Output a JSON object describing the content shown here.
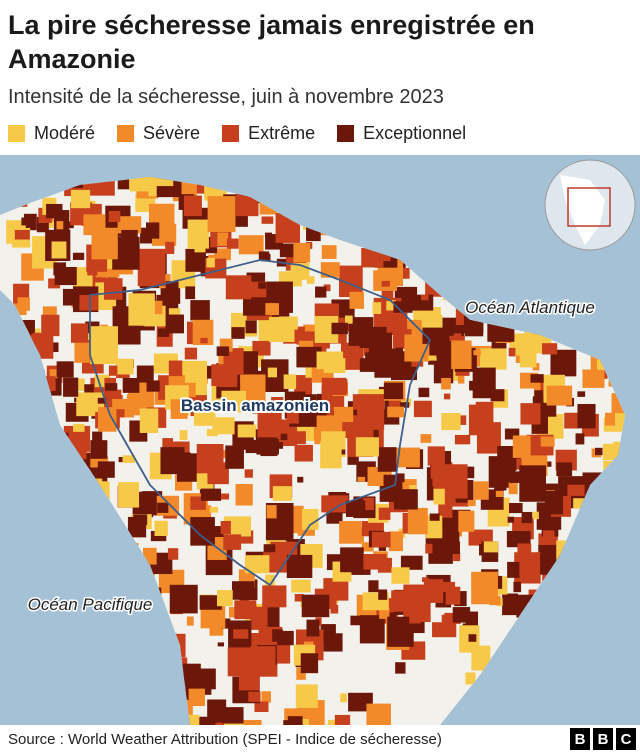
{
  "header": {
    "title": "La pire sécheresse jamais enregistrée en Amazonie",
    "subtitle": "Intensité de la sécheresse, juin à novembre 2023"
  },
  "legend": {
    "items": [
      {
        "label": "Modéré",
        "color": "#f7c948"
      },
      {
        "label": "Sévère",
        "color": "#f28a2a"
      },
      {
        "label": "Extrême",
        "color": "#c7401d"
      },
      {
        "label": "Exceptionnel",
        "color": "#6b1709"
      }
    ]
  },
  "map": {
    "labels": [
      "Océan Atlantique",
      "Bassin amazonien",
      "Océan Pacifique"
    ]
  },
  "footer": {
    "source": "Source : World Weather Attribution (SPEI - Indice de sécheresse)",
    "logo": [
      "B",
      "B",
      "C"
    ]
  }
}
